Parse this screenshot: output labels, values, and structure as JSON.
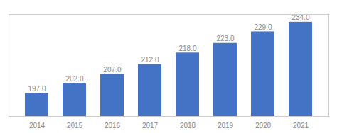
{
  "chart_data": {
    "type": "bar",
    "categories": [
      "2014",
      "2015",
      "2016",
      "2017",
      "2018",
      "2019",
      "2020",
      "2021"
    ],
    "values": [
      197.0,
      202.0,
      207.0,
      212.0,
      218.0,
      223.0,
      229.0,
      234.0
    ],
    "value_labels": [
      "197.0",
      "202.0",
      "207.0",
      "212.0",
      "218.0",
      "223.0",
      "229.0",
      "234.0"
    ],
    "color": "#4472C4",
    "ylim": [
      185,
      238
    ],
    "data_labels": true,
    "tick_labels": "x",
    "grid": false
  }
}
